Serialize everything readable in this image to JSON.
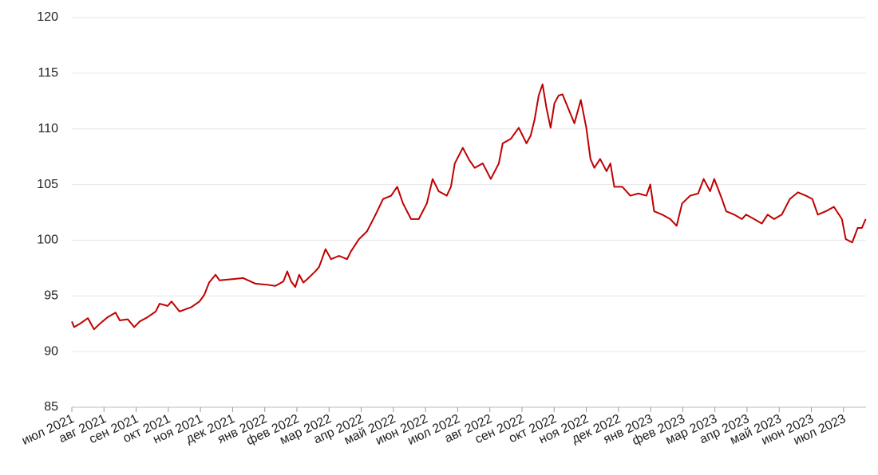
{
  "chart_data": {
    "type": "line",
    "x": [
      0,
      0.07,
      0.25,
      0.5,
      0.69,
      0.87,
      1.12,
      1.36,
      1.49,
      1.74,
      1.94,
      2.11,
      2.36,
      2.61,
      2.73,
      2.98,
      3.1,
      3.35,
      3.72,
      3.97,
      4.12,
      4.27,
      4.47,
      4.59,
      4.96,
      5.33,
      5.71,
      6.08,
      6.33,
      6.58,
      6.7,
      6.82,
      6.95,
      7.07,
      7.2,
      7.32,
      7.57,
      7.69,
      7.89,
      8.06,
      8.31,
      8.56,
      8.68,
      8.93,
      9.18,
      9.43,
      9.68,
      9.93,
      10.12,
      10.3,
      10.55,
      10.79,
      11.04,
      11.22,
      11.41,
      11.66,
      11.79,
      11.91,
      12.16,
      12.36,
      12.53,
      12.78,
      13.03,
      13.28,
      13.4,
      13.65,
      13.9,
      14.14,
      14.27,
      14.39,
      14.52,
      14.64,
      14.76,
      14.89,
      15.01,
      15.14,
      15.26,
      15.43,
      15.63,
      15.83,
      16.0,
      16.13,
      16.25,
      16.43,
      16.63,
      16.75,
      16.87,
      17.12,
      17.37,
      17.62,
      17.87,
      17.99,
      18.11,
      18.36,
      18.61,
      18.81,
      18.98,
      19.23,
      19.48,
      19.65,
      19.85,
      19.98,
      20.22,
      20.35,
      20.6,
      20.84,
      20.97,
      21.22,
      21.46,
      21.64,
      21.84,
      22.08,
      22.33,
      22.58,
      22.83,
      23.03,
      23.2,
      23.45,
      23.7,
      23.95,
      24.07,
      24.27,
      24.44,
      24.57,
      24.69
    ],
    "series": [
      {
        "color": "#c00000",
        "values": [
          92.7,
          92.2,
          92.5,
          93.0,
          92.0,
          92.5,
          93.1,
          93.5,
          92.8,
          92.9,
          92.2,
          92.7,
          93.1,
          93.6,
          94.3,
          94.1,
          94.5,
          93.6,
          94.0,
          94.5,
          95.1,
          96.2,
          96.9,
          96.4,
          96.5,
          96.6,
          96.1,
          96.0,
          95.9,
          96.3,
          97.2,
          96.3,
          95.8,
          96.9,
          96.2,
          96.5,
          97.2,
          97.6,
          99.2,
          98.3,
          98.6,
          98.3,
          99.0,
          100.1,
          100.8,
          102.2,
          103.7,
          104.0,
          104.8,
          103.3,
          101.9,
          101.9,
          103.3,
          105.5,
          104.4,
          104.0,
          104.8,
          106.9,
          108.3,
          107.2,
          106.5,
          106.9,
          105.5,
          106.9,
          108.7,
          109.1,
          110.1,
          108.7,
          109.4,
          110.8,
          113.0,
          114.0,
          111.9,
          110.1,
          112.3,
          113.0,
          113.1,
          111.9,
          110.5,
          112.6,
          110.1,
          107.3,
          106.5,
          107.3,
          106.2,
          106.9,
          104.8,
          104.8,
          104.0,
          104.2,
          104.0,
          105.0,
          102.6,
          102.3,
          101.9,
          101.3,
          103.3,
          104.0,
          104.2,
          105.5,
          104.4,
          105.5,
          103.7,
          102.6,
          102.3,
          101.9,
          102.3,
          101.9,
          101.5,
          102.3,
          101.9,
          102.3,
          103.7,
          104.3,
          104.0,
          103.7,
          102.3,
          102.6,
          103.0,
          101.9,
          100.1,
          99.8,
          101.1,
          101.1,
          101.9
        ]
      }
    ],
    "xlim": [
      0,
      24.7
    ],
    "xticks": [
      {
        "value": 0,
        "label": "июл 2021"
      },
      {
        "value": 1,
        "label": "авг 2021"
      },
      {
        "value": 2,
        "label": "сен 2021"
      },
      {
        "value": 3,
        "label": "окт 2021"
      },
      {
        "value": 4,
        "label": "ноя 2021"
      },
      {
        "value": 5,
        "label": "дек 2021"
      },
      {
        "value": 6,
        "label": "янв 2022"
      },
      {
        "value": 7,
        "label": "фев 2022"
      },
      {
        "value": 8,
        "label": "мар 2022"
      },
      {
        "value": 9,
        "label": "апр 2022"
      },
      {
        "value": 10,
        "label": "май 2022"
      },
      {
        "value": 11,
        "label": "июн 2022"
      },
      {
        "value": 12,
        "label": "июл 2022"
      },
      {
        "value": 13,
        "label": "авг 2022"
      },
      {
        "value": 14,
        "label": "сен 2022"
      },
      {
        "value": 15,
        "label": "окт 2022"
      },
      {
        "value": 16,
        "label": "ноя 2022"
      },
      {
        "value": 17,
        "label": "дек 2022"
      },
      {
        "value": 18,
        "label": "янв 2023"
      },
      {
        "value": 19,
        "label": "фев 2023"
      },
      {
        "value": 20,
        "label": "мар 2023"
      },
      {
        "value": 21,
        "label": "апр 2023"
      },
      {
        "value": 22,
        "label": "май 2023"
      },
      {
        "value": 23,
        "label": "июн 2023"
      },
      {
        "value": 24,
        "label": "июл 2023"
      }
    ],
    "ylim": [
      85,
      120
    ],
    "yticks": [
      85,
      90,
      95,
      100,
      105,
      110,
      115,
      120
    ],
    "grid": true
  }
}
